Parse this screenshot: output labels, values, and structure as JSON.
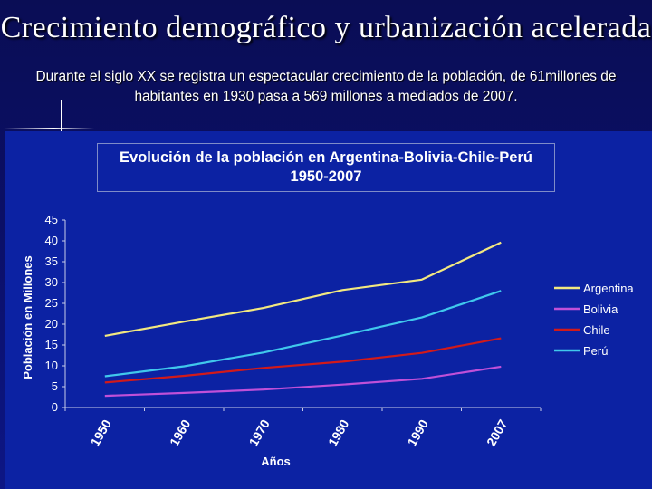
{
  "slide": {
    "title": "Crecimiento demográfico y urbanización acelerada",
    "subtitle": "Durante el siglo XX se registra un espectacular crecimiento de la población, de 61millones de habitantes en 1930 pasa a 569 millones a mediados de 2007."
  },
  "chart_data": {
    "type": "line",
    "title": "Evolución de la población en Argentina-Bolivia-Chile-Perú",
    "subtitle": "1950-2007",
    "xlabel": "Años",
    "ylabel": "Población en Millones",
    "categories": [
      "1950",
      "1960",
      "1970",
      "1980",
      "1990",
      "2007"
    ],
    "ylim": [
      0,
      45
    ],
    "yticks": [
      0,
      5,
      10,
      15,
      20,
      25,
      30,
      35,
      40,
      45
    ],
    "grid": false,
    "legend": "right",
    "series": [
      {
        "name": "Argentina",
        "color": "#f2e880",
        "values": [
          17.2,
          20.6,
          23.9,
          28.2,
          30.7,
          39.6
        ]
      },
      {
        "name": "Bolivia",
        "color": "#c050d8",
        "values": [
          2.8,
          3.5,
          4.3,
          5.5,
          6.9,
          9.8
        ]
      },
      {
        "name": "Chile",
        "color": "#d21a1a",
        "values": [
          6.0,
          7.6,
          9.5,
          11.0,
          13.1,
          16.6
        ]
      },
      {
        "name": "Perú",
        "color": "#40c8ec",
        "values": [
          7.5,
          9.9,
          13.2,
          17.3,
          21.6,
          28.0
        ]
      }
    ]
  }
}
